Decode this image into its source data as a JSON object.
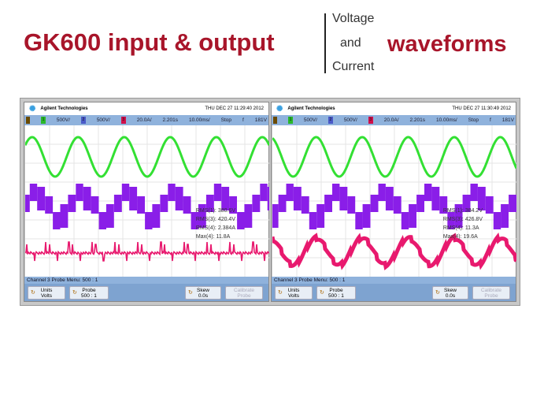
{
  "slide": {
    "title": "GK600 input & output",
    "subtitle_right": "waveforms",
    "side_words": [
      "Voltage",
      "and",
      "Current"
    ]
  },
  "colors": {
    "title": "#a8152a",
    "ch1": "#33e033",
    "ch2": "#8a1ee8",
    "ch3": "#e8196e",
    "bar": "#8fb2dc"
  },
  "scopes": [
    {
      "brand": "Agilent Technologies",
      "datetime": "THU DEC 27 11:29:40 2012",
      "status": [
        "1",
        "500V/",
        "2",
        "500V/",
        "3",
        "20.0A/",
        "2.201s",
        "10.00ms/",
        "Stop",
        "f",
        "181V"
      ],
      "meas": [
        "RMS(1): 380.6V",
        "RMS(3): 420.4V",
        "RMS(4): 2.384A",
        "Max(4): 11.8A"
      ],
      "menu": "Channel 3  Probe Menu:  500 : 1",
      "buttons": [
        {
          "l1": "Units",
          "l2": "Volts"
        },
        {
          "l1": "Probe",
          "l2": "500 : 1"
        },
        {
          "l1": "Skew",
          "l2": "0.0s"
        },
        {
          "l1": "Calibrate",
          "l2": "Probe"
        }
      ],
      "current_shape": "spikes"
    },
    {
      "brand": "Agilent Technologies",
      "datetime": "THU DEC 27 11:30:49 2012",
      "status": [
        "1",
        "500V/",
        "2",
        "500V/",
        "3",
        "20.0A/",
        "2.201s",
        "10.00ms/",
        "Stop",
        "f",
        "181V"
      ],
      "meas": [
        "RMS(1): 384.2V",
        "RMS(3): 426.8V",
        "RMS(4): 11.3A",
        "Max(4): 19.6A"
      ],
      "menu": "Channel 3  Probe Menu:  500 : 1",
      "buttons": [
        {
          "l1": "Units",
          "l2": "Volts"
        },
        {
          "l1": "Probe",
          "l2": "500 : 1"
        },
        {
          "l1": "Skew",
          "l2": "0.0s"
        },
        {
          "l1": "Calibrate",
          "l2": "Probe"
        }
      ],
      "current_shape": "sine"
    }
  ]
}
